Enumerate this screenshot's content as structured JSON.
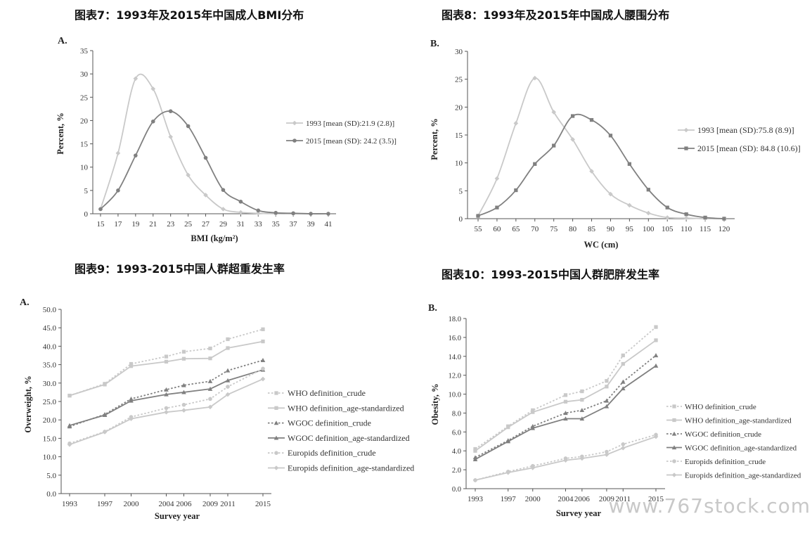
{
  "figure_titles": {
    "fig7": "图表7：1993年及2015年中国成人BMI分布",
    "fig8": "图表8：1993年及2015年中国成人腰围分布",
    "fig9": "图表9：1993-2015中国人群超重发生率",
    "fig10": "图表10：1993-2015中国人群肥胖发生率"
  },
  "watermark": "www.767stock.com",
  "colors": {
    "light": "#c9c9c9",
    "dark": "#808080",
    "axis": "#555555"
  },
  "chart_data": [
    {
      "id": "A",
      "panel_label": "A.",
      "type": "line",
      "xlabel": "BMI (kg/m²)",
      "ylabel": "Percent, %",
      "x": [
        15,
        17,
        19,
        21,
        23,
        25,
        27,
        29,
        31,
        33,
        35,
        37,
        39,
        41
      ],
      "ylim": [
        0,
        35
      ],
      "yticks": [
        0,
        5,
        10,
        15,
        20,
        25,
        30,
        35
      ],
      "grid": false,
      "legend_position": "right",
      "series": [
        {
          "name": "1993 [mean (SD):21.9 (2.8)]",
          "style": "light",
          "marker": "diamond",
          "values": [
            1,
            13,
            29,
            26.8,
            16.5,
            8.3,
            4,
            1,
            0.3,
            0.1,
            0,
            0,
            0,
            0
          ]
        },
        {
          "name": "2015 [mean (SD): 24.2 (3.5)]",
          "style": "dark",
          "marker": "circle",
          "values": [
            1,
            5,
            12.5,
            19.8,
            22,
            18.8,
            12,
            5.1,
            2.6,
            0.7,
            0.2,
            0.1,
            0,
            0
          ]
        }
      ]
    },
    {
      "id": "B",
      "panel_label": "B.",
      "type": "line",
      "xlabel": "WC (cm)",
      "ylabel": "Percent, %",
      "x": [
        55,
        60,
        65,
        70,
        75,
        80,
        85,
        90,
        95,
        100,
        105,
        110,
        115,
        120
      ],
      "ylim": [
        0,
        30
      ],
      "yticks": [
        0,
        5,
        10,
        15,
        20,
        25,
        30
      ],
      "grid": false,
      "legend_position": "right",
      "series": [
        {
          "name": "1993 [mean (SD):75.8 (8.9)]",
          "style": "light",
          "marker": "diamond",
          "values": [
            0.5,
            7.2,
            17.1,
            25.2,
            19.1,
            14.2,
            8.5,
            4.4,
            2.4,
            1,
            0.2,
            0.1,
            0,
            0
          ]
        },
        {
          "name": "2015 [mean (SD): 84.8 (10.6)]",
          "style": "dark",
          "marker": "square",
          "values": [
            0.5,
            2,
            5.1,
            9.8,
            13.1,
            18.4,
            17.7,
            14.9,
            9.8,
            5.2,
            2,
            0.8,
            0.2,
            0
          ]
        }
      ]
    },
    {
      "id": "C",
      "panel_label": "A.",
      "type": "line",
      "xlabel": "Survey year",
      "ylabel": "Overweight, %",
      "x": [
        1993,
        1997,
        2000,
        2004,
        2006,
        2009,
        2011,
        2015
      ],
      "xtick_labels": [
        "1993",
        "1997",
        "2000",
        "2004",
        "2006",
        "2009",
        "2011",
        "2015"
      ],
      "ylim": [
        0,
        50
      ],
      "yticks": [
        0,
        5,
        10,
        15,
        20,
        25,
        30,
        35,
        40,
        45,
        50
      ],
      "ytick_labels": [
        "0.0",
        "5.0",
        "10.0",
        "15.0",
        "20.0",
        "25.0",
        "30.0",
        "35.0",
        "40.0",
        "45.0",
        "50.0"
      ],
      "grid": false,
      "legend_position": "right",
      "series": [
        {
          "name": "WHO definition_crude",
          "style": "light",
          "dashed": true,
          "marker": "square",
          "values": [
            26.6,
            29.8,
            35.2,
            37.2,
            38.5,
            39.4,
            41.9,
            44.6
          ]
        },
        {
          "name": "WHO definition_age-standardized",
          "style": "light",
          "dashed": false,
          "marker": "square",
          "values": [
            26.6,
            29.6,
            34.6,
            35.8,
            36.6,
            36.7,
            39.5,
            41.3
          ]
        },
        {
          "name": "WGOC definition_crude",
          "style": "dark",
          "dashed": true,
          "marker": "triangle",
          "values": [
            18.2,
            21.5,
            25.7,
            28.2,
            29.4,
            30.5,
            33.4,
            36.2
          ]
        },
        {
          "name": "WGOC definition_age-standardized",
          "style": "dark",
          "dashed": false,
          "marker": "triangle",
          "values": [
            18.5,
            21.3,
            25.2,
            26.9,
            27.5,
            28.4,
            30.7,
            33.6
          ]
        },
        {
          "name": "Europids definition_crude",
          "style": "light",
          "dashed": true,
          "marker": "circle",
          "values": [
            13.6,
            16.8,
            20.8,
            23.2,
            24.1,
            25.7,
            29,
            33.9
          ]
        },
        {
          "name": "Europids definition_age-standardized",
          "style": "light",
          "dashed": false,
          "marker": "diamond",
          "values": [
            13.3,
            16.7,
            20.3,
            22.1,
            22.6,
            23.5,
            26.9,
            31.1
          ]
        }
      ]
    },
    {
      "id": "D",
      "panel_label": "B.",
      "type": "line",
      "xlabel": "Survey year",
      "ylabel": "Obesity, %",
      "x": [
        1993,
        1997,
        2000,
        2004,
        2006,
        2009,
        2011,
        2015
      ],
      "xtick_labels": [
        "1993",
        "1997",
        "2000",
        "2004",
        "2006",
        "2009",
        "2011",
        "2015"
      ],
      "ylim": [
        0,
        18
      ],
      "yticks": [
        0,
        2,
        4,
        6,
        8,
        10,
        12,
        14,
        16,
        18
      ],
      "ytick_labels": [
        "0.0",
        "2.0",
        "4.0",
        "6.0",
        "8.0",
        "10.0",
        "12.0",
        "14.0",
        "16.0",
        "18.0"
      ],
      "grid": false,
      "legend_position": "right",
      "series": [
        {
          "name": "WHO definition_crude",
          "style": "light",
          "dashed": true,
          "marker": "square",
          "values": [
            4.2,
            6.6,
            8.3,
            9.9,
            10.3,
            11.4,
            14.1,
            17.1
          ]
        },
        {
          "name": "WHO definition_age-standardized",
          "style": "light",
          "dashed": false,
          "marker": "square",
          "values": [
            4,
            6.5,
            8.1,
            9.2,
            9.4,
            10.8,
            13.2,
            15.7
          ]
        },
        {
          "name": "WGOC definition_crude",
          "style": "dark",
          "dashed": true,
          "marker": "triangle",
          "values": [
            3.3,
            5.1,
            6.6,
            8,
            8.3,
            9.3,
            11.3,
            14.1
          ]
        },
        {
          "name": "WGOC definition_age-standardized",
          "style": "dark",
          "dashed": false,
          "marker": "triangle",
          "values": [
            3.1,
            5,
            6.4,
            7.4,
            7.4,
            8.7,
            10.6,
            13
          ]
        },
        {
          "name": "Europids definition_crude",
          "style": "light",
          "dashed": true,
          "marker": "circle",
          "values": [
            0.9,
            1.8,
            2.4,
            3.2,
            3.4,
            3.9,
            4.7,
            5.7
          ]
        },
        {
          "name": "Europids definition_age-standardized",
          "style": "light",
          "dashed": false,
          "marker": "diamond",
          "values": [
            0.9,
            1.7,
            2.2,
            3,
            3.2,
            3.6,
            4.3,
            5.5
          ]
        }
      ]
    }
  ]
}
